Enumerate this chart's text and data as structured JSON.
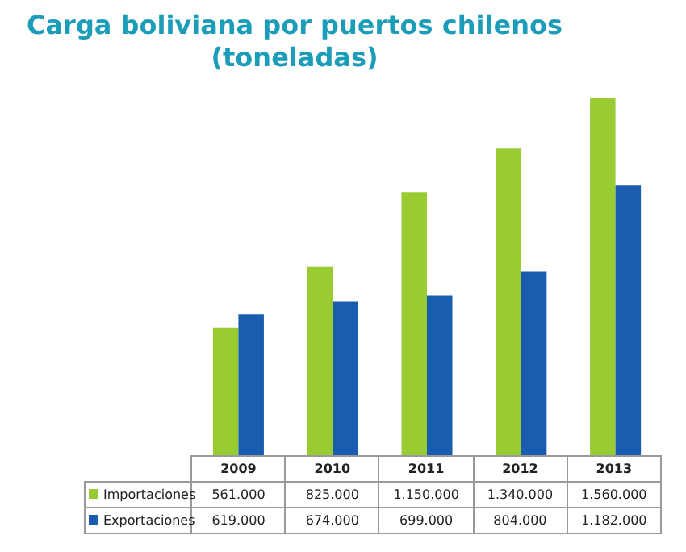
{
  "chart_data": {
    "type": "bar",
    "title": "Carga boliviana por puertos chilenos\n(toneladas)",
    "categories": [
      "2009",
      "2010",
      "2011",
      "2012",
      "2013"
    ],
    "series": [
      {
        "name": "Importaciones",
        "color": "#99cc33",
        "values": [
          561000,
          825000,
          1150000,
          1340000,
          1560000
        ],
        "value_labels": [
          "561.000",
          "825.000",
          "1.150.000",
          "1.340.000",
          "1.560.000"
        ]
      },
      {
        "name": "Exportaciones",
        "color": "#1a5cb0",
        "values": [
          619000,
          674000,
          699000,
          804000,
          1182000
        ],
        "value_labels": [
          "619.000",
          "674.000",
          "699.000",
          "804.000",
          "1.182.000"
        ]
      }
    ],
    "legend": "bottom",
    "grid": false
  }
}
